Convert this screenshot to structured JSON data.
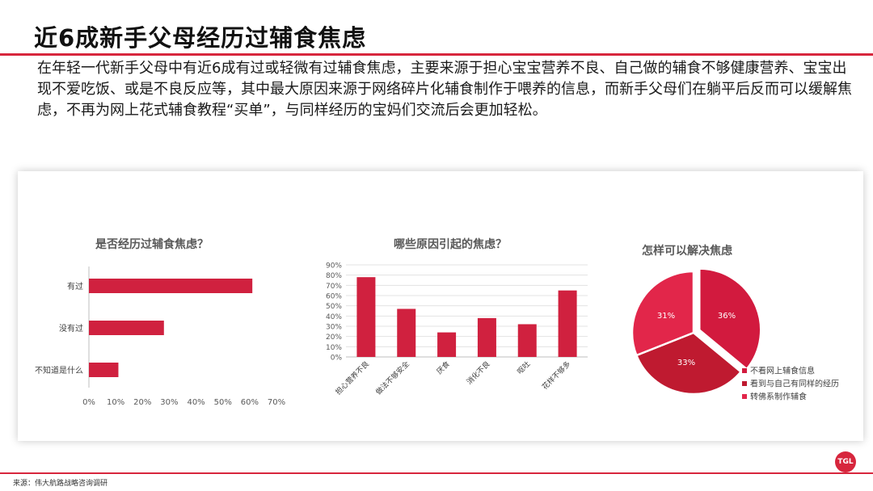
{
  "page": {
    "title": "近6成新手父母经历过辅食焦虑",
    "intro": "在年轻一代新手父母中有近6成有过或轻微有过辅食焦虑，主要来源于担心宝宝营养不良、自己做的辅食不够健康营养、宝宝出现不爱吃饭、或是不良反应等，其中最大原因来源于网络碎片化辅食制作于喂养的信息，而新手父母们在躺平后反而可以缓解焦虑，不再为网上花式辅食教程“买单”，与同样经历的宝妈们交流后会更加轻松。",
    "source": "来源：伟大航路战略咨询调研",
    "logo_text": "TGL"
  },
  "colors": {
    "accent": "#d7263d",
    "bar": "#d0213f",
    "pie": [
      "#d21a3e",
      "#bf1a30",
      "#e2264a"
    ]
  },
  "chart_data": [
    {
      "type": "bar",
      "orientation": "horizontal",
      "title": "是否经历过辅食焦虑？",
      "categories": [
        "有过",
        "没有过",
        "不知道是什么"
      ],
      "values": [
        0.61,
        0.28,
        0.11
      ],
      "xlim": [
        0,
        0.7
      ],
      "xticks": [
        "0%",
        "10%",
        "20%",
        "30%",
        "40%",
        "50%",
        "60%",
        "70%"
      ],
      "grid": false
    },
    {
      "type": "bar",
      "title": "哪些原因引起的焦虑？",
      "categories": [
        "担心营养不良",
        "做法不够安全",
        "厌食",
        "消化不良",
        "呕吐",
        "花样不够多"
      ],
      "values": [
        0.78,
        0.47,
        0.24,
        0.38,
        0.32,
        0.65
      ],
      "ylim": [
        0,
        0.9
      ],
      "yticks": [
        "0%",
        "10%",
        "20%",
        "30%",
        "40%",
        "50%",
        "60%",
        "70%",
        "80%",
        "90%"
      ],
      "grid": true
    },
    {
      "type": "pie",
      "title": "怎样可以解决焦虑",
      "labels": [
        "不看网上辅食信息",
        "看到与自己有同样的经历",
        "转佛系制作辅食"
      ],
      "values": [
        36,
        33,
        31
      ],
      "value_labels": [
        "36%",
        "33%",
        "31%"
      ],
      "legend": "bottom-right"
    }
  ]
}
